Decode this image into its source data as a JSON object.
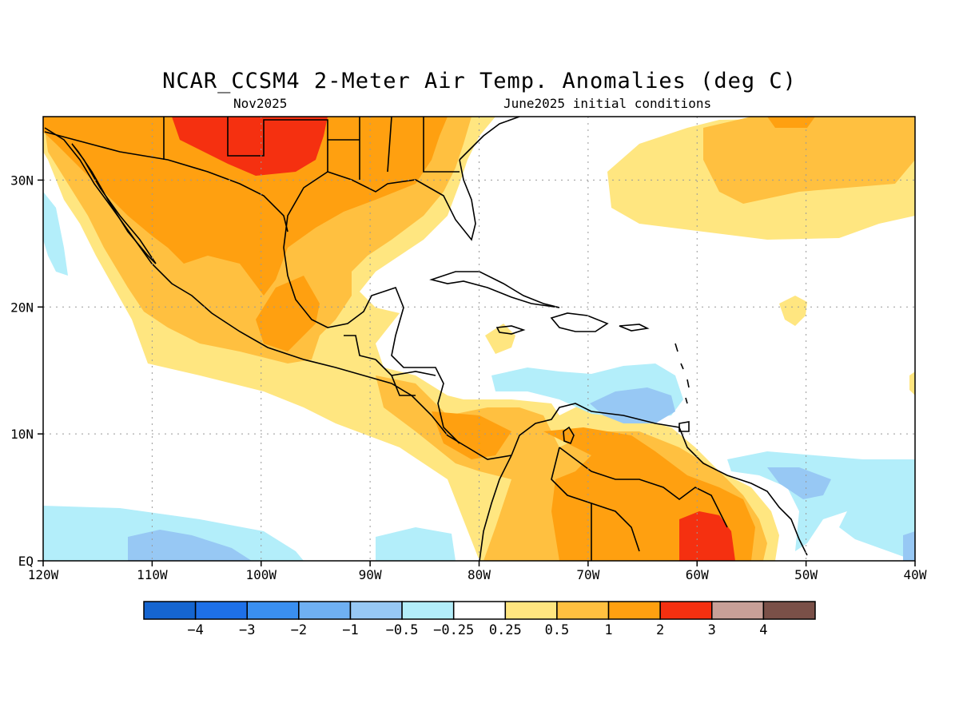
{
  "title": "NCAR_CCSM4 2-Meter Air Temp. Anomalies (deg C)",
  "subtitle_left": "Nov2025",
  "subtitle_right": "June2025 initial conditions",
  "map": {
    "lon_range": [
      -120,
      -40
    ],
    "lat_range": [
      0,
      35
    ],
    "x_ticks": [
      {
        "lon": -120,
        "label": "120W"
      },
      {
        "lon": -110,
        "label": "110W"
      },
      {
        "lon": -100,
        "label": "100W"
      },
      {
        "lon": -90,
        "label": "90W"
      },
      {
        "lon": -80,
        "label": "80W"
      },
      {
        "lon": -70,
        "label": "70W"
      },
      {
        "lon": -60,
        "label": "60W"
      },
      {
        "lon": -50,
        "label": "50W"
      },
      {
        "lon": -40,
        "label": "40W"
      }
    ],
    "y_ticks": [
      {
        "lat": 0,
        "label": "EQ"
      },
      {
        "lat": 10,
        "label": "10N"
      },
      {
        "lat": 20,
        "label": "20N"
      },
      {
        "lat": 30,
        "label": "30N"
      }
    ],
    "grid": "dotted"
  },
  "colorbar": {
    "labels": [
      "-4",
      "-3",
      "-2",
      "-1",
      "-0.5",
      "-0.25",
      "0.25",
      "0.5",
      "1",
      "2",
      "3",
      "4"
    ],
    "colors": [
      "#1565d0",
      "#1e70e8",
      "#3a8ff0",
      "#6fb0f2",
      "#97c8f4",
      "#b3eefa",
      "#ffffff",
      "#ffe680",
      "#ffc040",
      "#ffa010",
      "#f53010",
      "#c8a098",
      "#7a5048"
    ]
  },
  "colors": {
    "light_blue": "#b3eefa",
    "mid_blue": "#97c8f4",
    "light_yellow": "#ffe680",
    "light_orange": "#ffc040",
    "orange": "#ffa010",
    "red": "#f53010"
  }
}
